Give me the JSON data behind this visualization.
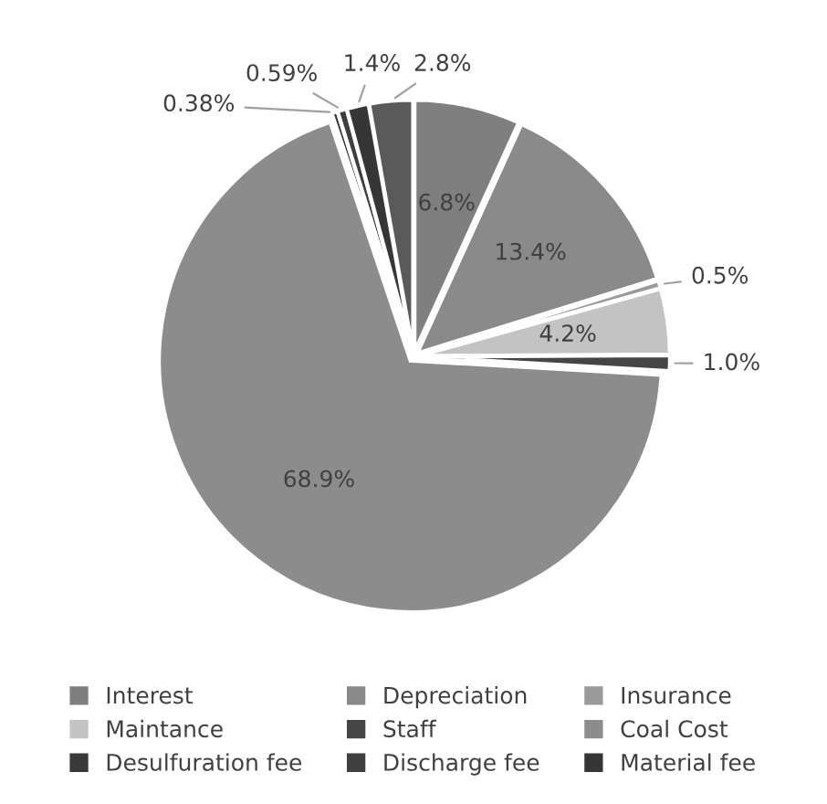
{
  "chart_data": {
    "type": "pie",
    "categories": [
      "Interest",
      "Depreciation",
      "Insurance",
      "Maintance",
      "Staff",
      "Coal Cost",
      "Desulfuration fee",
      "Discharge fee",
      "Material fee",
      null
    ],
    "values": [
      6.8,
      13.4,
      0.5,
      4.2,
      1.0,
      68.9,
      0.38,
      0.59,
      1.4,
      2.8
    ],
    "value_labels": [
      "6.8%",
      "13.4%",
      "0.5%",
      "4.2%",
      "1.0%",
      "68.9%",
      "0.38%",
      "0.59%",
      "1.4%",
      "2.8%"
    ],
    "colors": [
      "#7f7f7f",
      "#8a8a8a",
      "#9a9a9a",
      "#c3c3c3",
      "#454545",
      "#8c8c8c",
      "#3a3a3a",
      "#3f3f3f",
      "#363636",
      "#5a5a5a"
    ],
    "legend": "bottom"
  }
}
